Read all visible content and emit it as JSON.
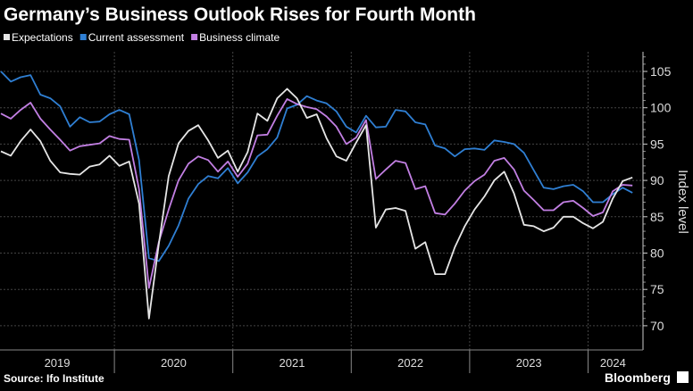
{
  "chart_data": {
    "type": "line",
    "title": "Germany’s Business Outlook Rises for Fourth Month",
    "ylabel": "Index level",
    "xlabel": "",
    "ylim": [
      70,
      107
    ],
    "yticks": [
      70,
      75,
      80,
      85,
      90,
      95,
      100,
      105
    ],
    "x_start": "2019-01",
    "x_frequency": "monthly",
    "x_tick_labels": [
      "2019",
      "2020",
      "2021",
      "2022",
      "2023",
      "2024"
    ],
    "grid": true,
    "legend_position": "top-left",
    "source": "Source: Ifo Institute",
    "brand": "Bloomberg",
    "colors": {
      "Expectations": "#e6e6e6",
      "Current assessment": "#2f7fd3",
      "Business climate": "#c27fe3"
    },
    "series": [
      {
        "name": "Expectations",
        "values": [
          94.0,
          93.4,
          95.4,
          97.0,
          95.4,
          92.7,
          91.1,
          90.9,
          90.8,
          91.9,
          92.2,
          93.4,
          92.0,
          92.6,
          86.8,
          71.0,
          81.2,
          90.6,
          95.1,
          96.8,
          97.6,
          95.5,
          93.1,
          94.1,
          91.2,
          93.9,
          99.2,
          98.2,
          101.3,
          102.6,
          101.3,
          98.6,
          99.1,
          95.8,
          93.3,
          92.7,
          95.2,
          97.6,
          83.5,
          86.0,
          86.2,
          85.8,
          80.6,
          81.5,
          77.1,
          77.1,
          80.8,
          83.7,
          86.0,
          87.8,
          90.0,
          91.2,
          88.2,
          83.9,
          83.7,
          83.0,
          83.5,
          85.0,
          85.0,
          84.1,
          83.4,
          84.3,
          87.5,
          89.9,
          90.4
        ]
      },
      {
        "name": "Current assessment",
        "values": [
          105.0,
          103.6,
          104.2,
          104.5,
          101.8,
          101.3,
          100.2,
          97.4,
          98.7,
          98.0,
          98.1,
          99.1,
          99.7,
          99.1,
          92.8,
          79.3,
          78.9,
          81.0,
          83.8,
          87.5,
          89.5,
          90.6,
          90.3,
          91.7,
          89.6,
          91.1,
          93.3,
          94.3,
          95.9,
          99.9,
          100.4,
          101.6,
          101.0,
          100.6,
          99.5,
          97.4,
          96.6,
          98.9,
          97.3,
          97.4,
          99.7,
          99.5,
          98.0,
          97.7,
          94.8,
          94.4,
          93.3,
          94.3,
          94.4,
          94.2,
          95.5,
          95.3,
          95.0,
          93.8,
          91.4,
          89.0,
          88.8,
          89.2,
          89.4,
          88.5,
          87.0,
          87.0,
          88.1,
          89.0,
          88.3
        ]
      },
      {
        "name": "Business climate",
        "values": [
          99.2,
          98.5,
          99.7,
          100.7,
          98.5,
          97.0,
          95.6,
          94.1,
          94.7,
          94.9,
          95.1,
          96.1,
          95.7,
          95.6,
          88.8,
          75.2,
          81.5,
          86.0,
          90.0,
          92.3,
          93.3,
          92.8,
          91.2,
          92.6,
          90.5,
          92.3,
          96.2,
          96.3,
          98.9,
          101.2,
          100.5,
          100.1,
          99.8,
          98.8,
          97.4,
          95.0,
          95.9,
          98.3,
          90.2,
          91.5,
          92.7,
          92.4,
          88.8,
          89.2,
          85.5,
          85.3,
          86.8,
          88.6,
          89.9,
          90.8,
          92.7,
          93.1,
          91.5,
          88.6,
          87.3,
          85.9,
          85.9,
          87.0,
          87.2,
          86.2,
          85.1,
          85.6,
          88.5,
          89.4,
          89.3
        ]
      }
    ]
  }
}
